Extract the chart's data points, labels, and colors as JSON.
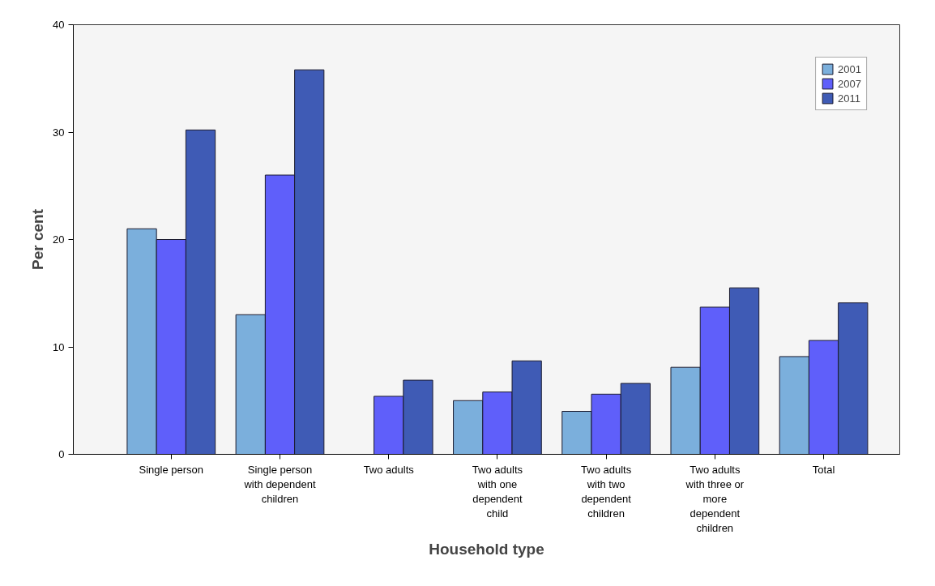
{
  "chart_data": {
    "type": "bar",
    "xlabel": "Household type",
    "ylabel": "Per cent",
    "categories": [
      "Single person",
      "Single person\nwith dependent\nchildren",
      "Two adults",
      "Two adults\nwith one\ndependent\nchild",
      "Two adults\nwith two\ndependent\nchildren",
      "Two adults\nwith three or\nmore\ndependent\nchildren",
      "Total"
    ],
    "series": [
      {
        "name": "2001",
        "color": "#7bafdc",
        "values": [
          21,
          13,
          null,
          5.0,
          4.0,
          8.1,
          9.1
        ]
      },
      {
        "name": "2007",
        "color": "#5f5ffa",
        "values": [
          20.0,
          26,
          5.4,
          5.8,
          5.6,
          13.7,
          10.6
        ]
      },
      {
        "name": "2011",
        "color": "#3f5bb5",
        "values": [
          30.2,
          35.8,
          6.9,
          8.7,
          6.6,
          15.5,
          14.1
        ]
      }
    ],
    "ylim": [
      0,
      40
    ],
    "yticks": [
      0,
      10,
      20,
      30,
      40
    ],
    "grid": false,
    "legend": "top right"
  }
}
